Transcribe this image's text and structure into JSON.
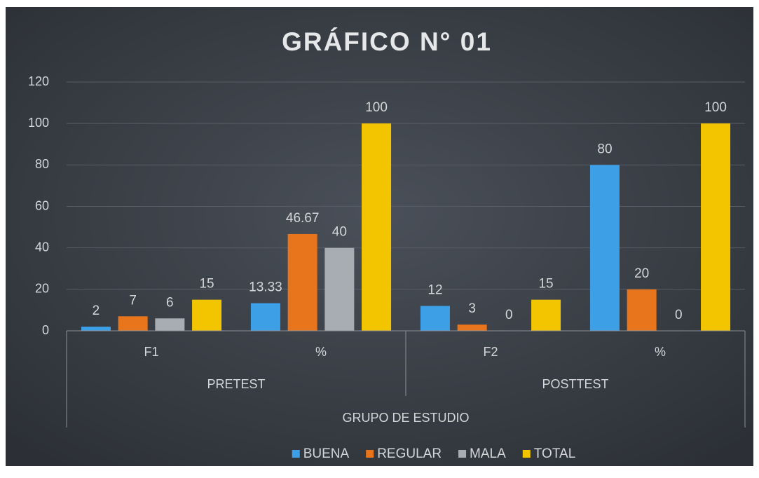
{
  "chart_data": {
    "type": "bar",
    "title": "GRÁFICO N° 01",
    "categories": [
      "F1",
      "%",
      "F2",
      "%"
    ],
    "groups": [
      {
        "label": "PRETEST",
        "count": 2
      },
      {
        "label": "POSTTEST",
        "count": 2
      }
    ],
    "x_label": "GRUPO DE ESTUDIO",
    "series": [
      {
        "name": "BUENA",
        "color": "#3d9fe6",
        "values": [
          2,
          13.33,
          12,
          80
        ]
      },
      {
        "name": "REGULAR",
        "color": "#e8751c",
        "values": [
          7,
          46.67,
          3,
          20
        ]
      },
      {
        "name": "MALA",
        "color": "#a8acb3",
        "values": [
          6,
          40,
          0,
          0
        ]
      },
      {
        "name": "TOTAL",
        "color": "#f3c500",
        "values": [
          15,
          100,
          15,
          100
        ]
      }
    ],
    "ylim": [
      0,
      120
    ],
    "yticks": [
      0,
      20,
      40,
      60,
      80,
      100,
      120
    ],
    "grid": true,
    "legend": "bottom"
  }
}
